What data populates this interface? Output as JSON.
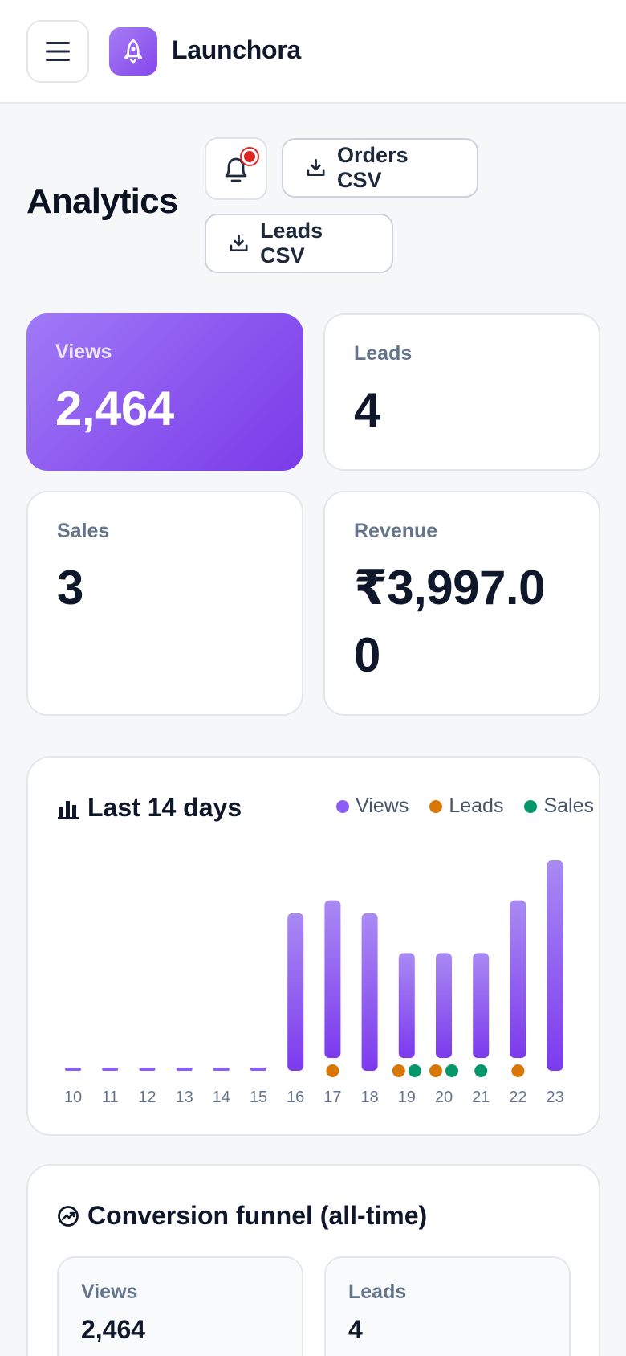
{
  "header": {
    "brand": "Launchora",
    "menu_icon": "hamburger-icon",
    "logo_icon": "rocket-icon"
  },
  "page": {
    "title": "Analytics",
    "bell_icon": "bell-icon",
    "orders_csv_label": "Orders CSV",
    "leads_csv_label": "Leads CSV"
  },
  "stats": {
    "views": {
      "label": "Views",
      "value": "2,464"
    },
    "leads": {
      "label": "Leads",
      "value": "4"
    },
    "sales": {
      "label": "Sales",
      "value": "3"
    },
    "revenue": {
      "label": "Revenue",
      "value": "₹3,997.00"
    }
  },
  "chart": {
    "title": "Last 14 days",
    "legend": {
      "views": "Views",
      "leads": "Leads",
      "sales": "Sales"
    }
  },
  "colors": {
    "accent": "#8b5cf6",
    "views": "#8b5cf6",
    "leads": "#d97706",
    "sales": "#059669"
  },
  "chart_data": {
    "type": "bar",
    "title": "Last 14 days",
    "categories": [
      "10",
      "11",
      "12",
      "13",
      "14",
      "15",
      "16",
      "17",
      "18",
      "19",
      "20",
      "21",
      "22",
      "23"
    ],
    "series": [
      {
        "name": "Views",
        "values": [
          0,
          0,
          0,
          0,
          0,
          0,
          194,
          210,
          194,
          145,
          145,
          145,
          210,
          259
        ]
      },
      {
        "name": "Leads",
        "values": [
          0,
          0,
          0,
          0,
          0,
          0,
          0,
          1,
          0,
          1,
          1,
          0,
          1,
          0
        ]
      },
      {
        "name": "Sales",
        "values": [
          0,
          0,
          0,
          0,
          0,
          0,
          0,
          0,
          0,
          1,
          1,
          1,
          0,
          0
        ]
      }
    ],
    "legend": "top-right",
    "grid": false
  },
  "funnel": {
    "title": "Conversion funnel (all-time)",
    "views": {
      "label": "Views",
      "value": "2,464"
    },
    "leads": {
      "label": "Leads",
      "value": "4"
    }
  }
}
